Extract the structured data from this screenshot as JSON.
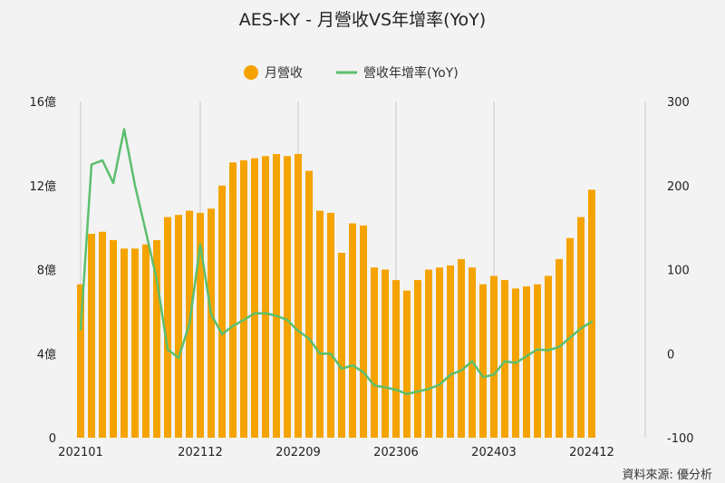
{
  "chart_data": {
    "type": "bar",
    "title": "AES-KY - 月營收VS年增率(YoY)",
    "source": "資料來源: 優分析",
    "legend": {
      "placement": "top-center",
      "items": [
        {
          "label": "月營收",
          "marker": "circle",
          "color": "#f5a300"
        },
        {
          "label": "營收年增率(YoY)",
          "marker": "line",
          "color": "#5cbf6e"
        }
      ]
    },
    "x": [
      "202101",
      "202102",
      "202103",
      "202104",
      "202105",
      "202106",
      "202107",
      "202108",
      "202109",
      "202110",
      "202111",
      "202112",
      "202201",
      "202202",
      "202203",
      "202204",
      "202205",
      "202206",
      "202207",
      "202208",
      "202209",
      "202210",
      "202211",
      "202212",
      "202301",
      "202302",
      "202303",
      "202304",
      "202305",
      "202306",
      "202307",
      "202308",
      "202309",
      "202310",
      "202311",
      "202312",
      "202401",
      "202402",
      "202403",
      "202404",
      "202405",
      "202406",
      "202407",
      "202408",
      "202409",
      "202410",
      "202411",
      "202412"
    ],
    "x_tick_labels": [
      "202101",
      "202112",
      "202209",
      "202306",
      "202403",
      "202412"
    ],
    "y_left": {
      "ticks": [
        "0",
        "4億",
        "8億",
        "12億",
        "16億"
      ],
      "tick_values": [
        0,
        4,
        8,
        12,
        16
      ],
      "ylim": [
        0,
        16
      ],
      "unit": "億"
    },
    "y_right": {
      "ticks": [
        "-100",
        "0",
        "100",
        "200",
        "300"
      ],
      "tick_values": [
        -100,
        0,
        100,
        200,
        300
      ],
      "ylim": [
        -100,
        300
      ]
    },
    "grid": {
      "vertical": true,
      "horizontal": false
    },
    "series": [
      {
        "name": "月營收",
        "type": "bar",
        "axis": "left",
        "color": "#f5a300",
        "values": [
          7.3,
          9.7,
          9.8,
          9.4,
          9.0,
          9.0,
          9.2,
          9.4,
          10.5,
          10.6,
          10.8,
          10.7,
          10.9,
          12.0,
          13.1,
          13.2,
          13.3,
          13.4,
          13.5,
          13.4,
          13.5,
          12.7,
          10.8,
          10.7,
          8.8,
          10.2,
          10.1,
          8.1,
          8.0,
          7.5,
          7.0,
          7.5,
          8.0,
          8.1,
          8.2,
          8.5,
          8.1,
          7.3,
          7.7,
          7.5,
          7.1,
          7.2,
          7.3,
          7.7,
          8.5,
          9.5,
          10.5,
          11.8
        ]
      },
      {
        "name": "營收年增率(YoY)",
        "type": "line",
        "axis": "right",
        "color": "#5cbf6e",
        "values": [
          29,
          225,
          230,
          203,
          267,
          200,
          145,
          88,
          5,
          -5,
          35,
          130,
          47,
          23,
          33,
          40,
          48,
          48,
          45,
          40,
          27,
          18,
          0,
          0,
          -18,
          -14,
          -22,
          -38,
          -40,
          -43,
          -48,
          -45,
          -42,
          -37,
          -25,
          -20,
          -9,
          -28,
          -25,
          -9,
          -11,
          -3,
          5,
          4,
          8,
          19,
          30,
          38
        ]
      }
    ]
  }
}
